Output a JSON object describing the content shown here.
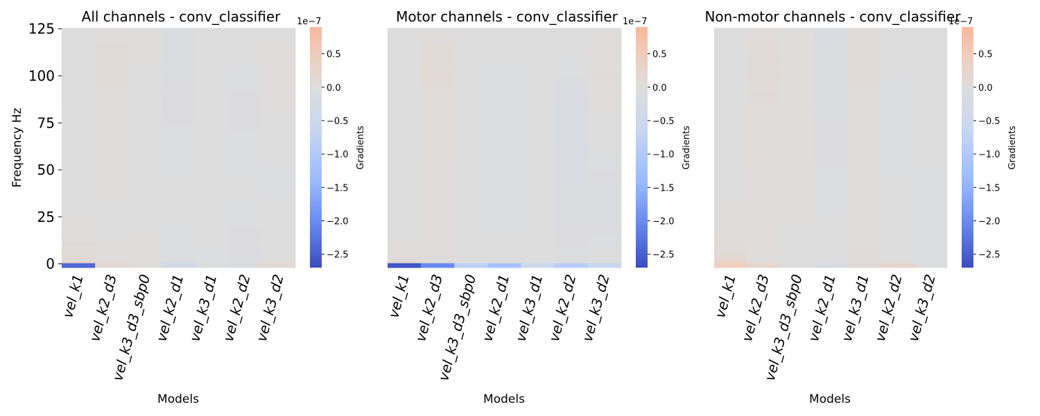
{
  "chart_data": [
    {
      "type": "heatmap",
      "title": "All channels - conv_classifier",
      "xlabel": "Models",
      "ylabel": "Frequency Hz",
      "categories": [
        "vel_k1",
        "vel_k2_d3",
        "vel_k3_d3_sbp0",
        "vel_k2_d1",
        "vel_k3_d1",
        "vel_k2_d2",
        "vel_k3_d2"
      ],
      "y_ticks": [
        0,
        25,
        50,
        75,
        100,
        125
      ],
      "ylim": [
        -2,
        126
      ],
      "colorbar": {
        "label": "Gradients",
        "scale_label": "1e−7",
        "range": [
          -2.7,
          0.9
        ],
        "ticks": [
          0.5,
          0.0,
          -0.5,
          -1.0,
          -1.5,
          -2.0,
          -2.5
        ]
      },
      "column_profiles": [
        {
          "model": "vel_k1",
          "points": [
            [
              0,
              -2.4
            ],
            [
              1,
              0.22
            ],
            [
              2,
              0.12
            ],
            [
              8,
              0.07
            ],
            [
              15,
              0.02
            ],
            [
              30,
              0.0
            ],
            [
              60,
              -0.01
            ],
            [
              110,
              -0.02
            ],
            [
              125,
              -0.02
            ]
          ]
        },
        {
          "model": "vel_k2_d3",
          "points": [
            [
              0,
              0.15
            ],
            [
              2,
              0.02
            ],
            [
              20,
              0.0
            ],
            [
              90,
              0.03
            ],
            [
              100,
              0.09
            ],
            [
              115,
              0.06
            ],
            [
              125,
              0.02
            ]
          ]
        },
        {
          "model": "vel_k3_d3_sbp0",
          "points": [
            [
              0,
              0.01
            ],
            [
              60,
              0.0
            ],
            [
              125,
              0.01
            ]
          ]
        },
        {
          "model": "vel_k2_d1",
          "points": [
            [
              0,
              -0.35
            ],
            [
              2,
              -0.05
            ],
            [
              40,
              -0.04
            ],
            [
              90,
              -0.07
            ],
            [
              125,
              -0.09
            ]
          ]
        },
        {
          "model": "vel_k3_d1",
          "points": [
            [
              0,
              -0.05
            ],
            [
              50,
              -0.01
            ],
            [
              125,
              -0.01
            ]
          ]
        },
        {
          "model": "vel_k2_d2",
          "points": [
            [
              0,
              -0.08
            ],
            [
              40,
              -0.04
            ],
            [
              85,
              -0.07
            ],
            [
              125,
              -0.02
            ]
          ]
        },
        {
          "model": "vel_k3_d2",
          "points": [
            [
              0,
              0.12
            ],
            [
              2,
              0.01
            ],
            [
              45,
              -0.06
            ],
            [
              60,
              -0.02
            ],
            [
              100,
              0.03
            ],
            [
              125,
              0.0
            ]
          ]
        }
      ]
    },
    {
      "type": "heatmap",
      "title": "Motor channels - conv_classifier",
      "xlabel": "Models",
      "categories": [
        "vel_k1",
        "vel_k2_d3",
        "vel_k3_d3_sbp0",
        "vel_k2_d1",
        "vel_k3_d1",
        "vel_k2_d2",
        "vel_k3_d2"
      ],
      "ylim": [
        -2,
        126
      ],
      "colorbar": {
        "label": "Gradients",
        "scale_label": "1e−7",
        "range": [
          -2.7,
          0.9
        ],
        "ticks": [
          0.5,
          0.0,
          -0.5,
          -1.0,
          -1.5,
          -2.0,
          -2.5
        ]
      },
      "column_profiles": [
        {
          "model": "vel_k1",
          "points": [
            [
              0,
              -2.6
            ],
            [
              1,
              0.06
            ],
            [
              15,
              0.0
            ],
            [
              125,
              -0.01
            ]
          ]
        },
        {
          "model": "vel_k2_d3",
          "points": [
            [
              0,
              -2.0
            ],
            [
              1,
              0.03
            ],
            [
              90,
              0.04
            ],
            [
              100,
              0.12
            ],
            [
              115,
              0.08
            ],
            [
              125,
              -0.02
            ]
          ]
        },
        {
          "model": "vel_k3_d3_sbp0",
          "points": [
            [
              0,
              -0.8
            ],
            [
              1,
              -0.02
            ],
            [
              125,
              -0.01
            ]
          ]
        },
        {
          "model": "vel_k2_d1",
          "points": [
            [
              0,
              -1.2
            ],
            [
              1,
              -0.04
            ],
            [
              60,
              -0.06
            ],
            [
              100,
              -0.05
            ],
            [
              125,
              -0.03
            ]
          ]
        },
        {
          "model": "vel_k3_d1",
          "points": [
            [
              0,
              -0.45
            ],
            [
              1,
              -0.03
            ],
            [
              125,
              -0.04
            ]
          ]
        },
        {
          "model": "vel_k2_d2",
          "points": [
            [
              0,
              -0.9
            ],
            [
              1,
              -0.05
            ],
            [
              55,
              -0.12
            ],
            [
              80,
              -0.16
            ],
            [
              100,
              -0.06
            ],
            [
              125,
              -0.02
            ]
          ]
        },
        {
          "model": "vel_k3_d2",
          "points": [
            [
              0,
              -0.6
            ],
            [
              1,
              -0.02
            ],
            [
              30,
              -0.1
            ],
            [
              60,
              -0.04
            ],
            [
              100,
              0.05
            ],
            [
              125,
              0.01
            ]
          ]
        }
      ]
    },
    {
      "type": "heatmap",
      "title": "Non-motor channels - conv_classifier",
      "xlabel": "Models",
      "categories": [
        "vel_k1",
        "vel_k2_d3",
        "vel_k3_d3_sbp0",
        "vel_k2_d1",
        "vel_k3_d1",
        "vel_k2_d2",
        "vel_k3_d2"
      ],
      "ylim": [
        -2,
        126
      ],
      "colorbar": {
        "label": "Gradients",
        "scale_label": "1e−7",
        "range": [
          -2.7,
          0.9
        ],
        "ticks": [
          0.5,
          0.0,
          -0.5,
          -1.0,
          -1.5,
          -2.0,
          -2.5
        ]
      },
      "column_profiles": [
        {
          "model": "vel_k1",
          "points": [
            [
              0,
              0.45
            ],
            [
              1,
              0.3
            ],
            [
              3,
              0.16
            ],
            [
              10,
              0.06
            ],
            [
              20,
              0.01
            ],
            [
              125,
              -0.01
            ]
          ]
        },
        {
          "model": "vel_k2_d3",
          "points": [
            [
              0,
              0.2
            ],
            [
              1,
              0.02
            ],
            [
              90,
              0.05
            ],
            [
              100,
              0.1
            ],
            [
              115,
              0.07
            ],
            [
              125,
              0.03
            ]
          ]
        },
        {
          "model": "vel_k3_d3_sbp0",
          "points": [
            [
              0,
              0.0
            ],
            [
              60,
              0.02
            ],
            [
              125,
              0.01
            ]
          ]
        },
        {
          "model": "vel_k2_d1",
          "points": [
            [
              0,
              -0.2
            ],
            [
              1,
              -0.03
            ],
            [
              85,
              -0.08
            ],
            [
              125,
              -0.11
            ]
          ]
        },
        {
          "model": "vel_k3_d1",
          "points": [
            [
              0,
              0.05
            ],
            [
              90,
              0.03
            ],
            [
              105,
              0.1
            ],
            [
              125,
              0.04
            ]
          ]
        },
        {
          "model": "vel_k2_d2",
          "points": [
            [
              0,
              0.25
            ],
            [
              1,
              0.0
            ],
            [
              50,
              -0.05
            ],
            [
              85,
              -0.06
            ],
            [
              125,
              -0.02
            ]
          ]
        },
        {
          "model": "vel_k3_d2",
          "points": [
            [
              0,
              -0.05
            ],
            [
              40,
              -0.06
            ],
            [
              55,
              -0.04
            ],
            [
              125,
              0.0
            ]
          ]
        }
      ]
    }
  ]
}
